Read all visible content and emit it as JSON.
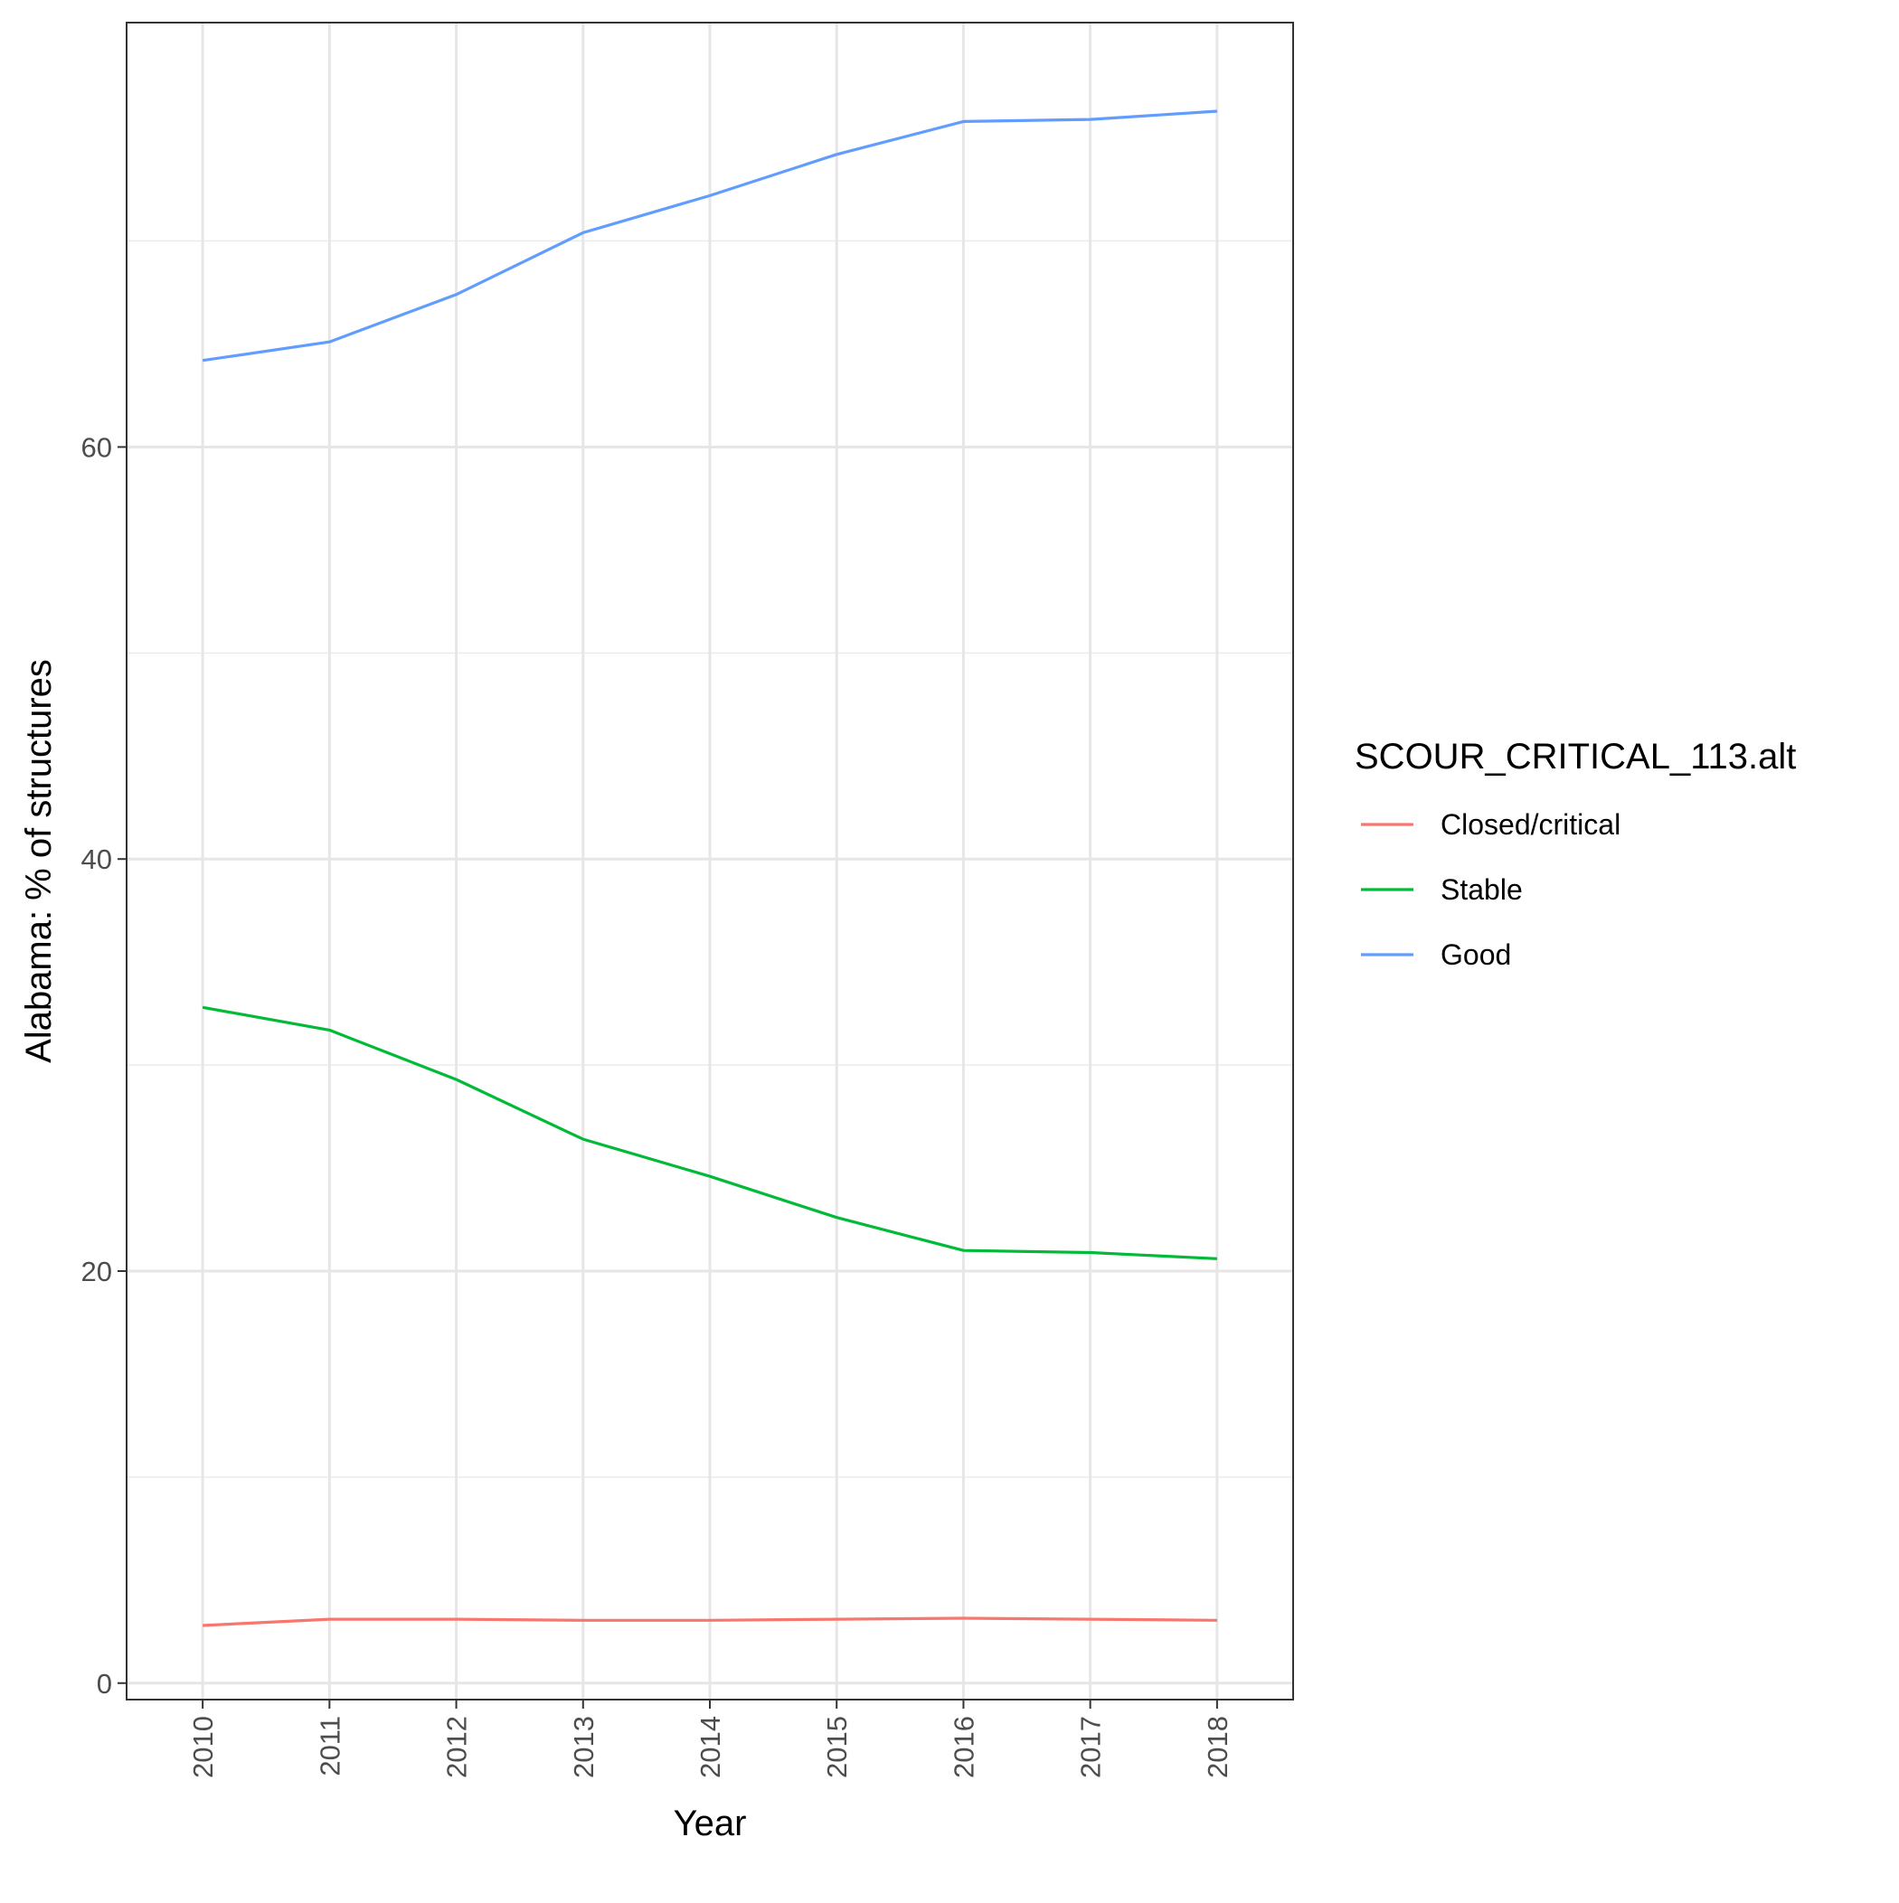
{
  "chart_data": {
    "type": "line",
    "title": "",
    "xlabel": "Year",
    "ylabel": "Alabama: % of structures",
    "x": [
      2010,
      2011,
      2012,
      2013,
      2014,
      2015,
      2016,
      2017,
      2018
    ],
    "x_tick_labels": [
      "2010",
      "2011",
      "2012",
      "2013",
      "2014",
      "2015",
      "2016",
      "2017",
      "2018"
    ],
    "y_ticks": [
      0,
      20,
      40,
      60
    ],
    "y_tick_labels": [
      "0",
      "20",
      "40",
      "60"
    ],
    "ylim": [
      -0.8,
      80.6
    ],
    "xlim": [
      2009.4,
      2018.6
    ],
    "grid": true,
    "legend": {
      "title": "SCOUR_CRITICAL_113.alt",
      "placement": "right"
    },
    "series": [
      {
        "name": "Closed/critical",
        "color": "#F8766D",
        "values": [
          2.8,
          3.1,
          3.1,
          3.05,
          3.05,
          3.1,
          3.15,
          3.1,
          3.05
        ]
      },
      {
        "name": "Stable",
        "color": "#00BA38",
        "values": [
          32.8,
          31.7,
          29.3,
          26.4,
          24.6,
          22.6,
          21.0,
          20.9,
          20.6
        ]
      },
      {
        "name": "Good",
        "color": "#619CFF",
        "values": [
          64.2,
          65.1,
          67.4,
          70.4,
          72.2,
          74.2,
          75.8,
          75.9,
          76.3
        ]
      }
    ]
  }
}
